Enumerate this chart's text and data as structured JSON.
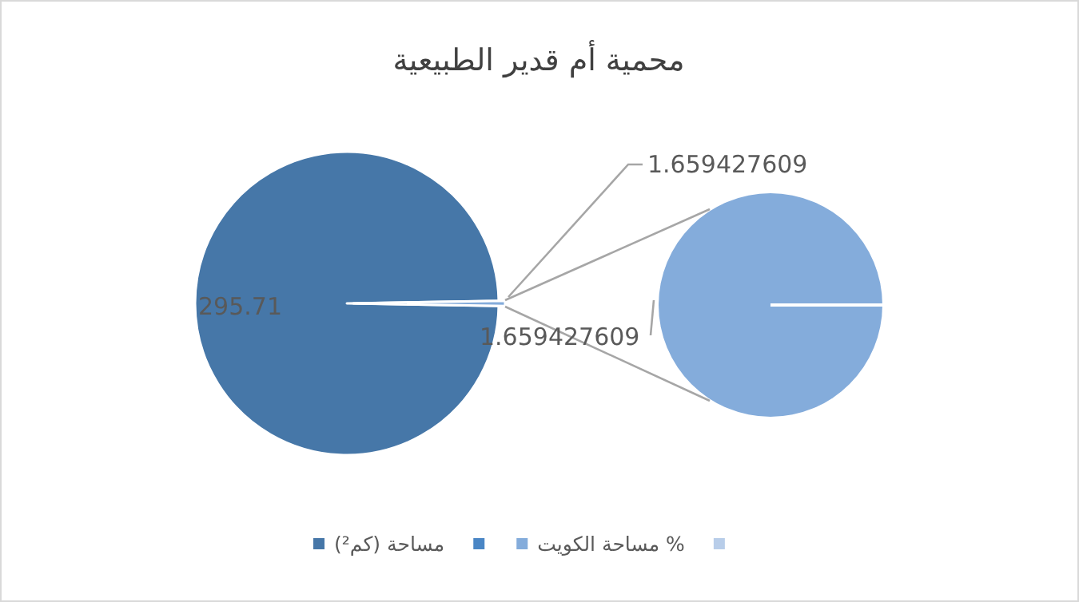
{
  "chart_data": {
    "type": "pie",
    "title": "محمية أم قدير الطبيعية",
    "categories": [
      "مساحة (كم²)",
      null,
      "مساحة الكويت %",
      null
    ],
    "values": [
      295.71,
      null,
      1.659427609,
      null
    ],
    "colors": [
      "#4677a8",
      "#4a86c5",
      "#84acdb",
      "#b8cde9"
    ],
    "data_labels": true,
    "legend": "bottom",
    "annotations": [
      "1.659427609"
    ]
  }
}
